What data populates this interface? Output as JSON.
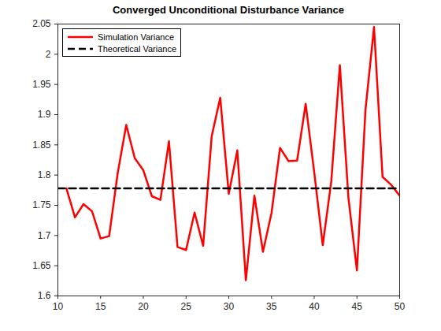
{
  "chart_data": {
    "type": "line",
    "title": "Converged  Unconditional  Disturbance  Variance",
    "xlim": [
      10,
      50
    ],
    "xticks": [
      10,
      15,
      20,
      25,
      30,
      35,
      40,
      45,
      50
    ],
    "ylim": [
      1.6,
      2.05
    ],
    "yticks": [
      1.6,
      1.65,
      1.7,
      1.75,
      1.8,
      1.85,
      1.9,
      1.95,
      2,
      2.05
    ],
    "grid": false,
    "legend": "top-left",
    "series": [
      {
        "name": "Simulation Variance",
        "color": "#ff0000",
        "line_style": "solid",
        "x": [
          11,
          12,
          13,
          14,
          15,
          16,
          17,
          18,
          19,
          20,
          21,
          22,
          23,
          24,
          25,
          26,
          27,
          28,
          29,
          30,
          31,
          32,
          33,
          34,
          35,
          36,
          37,
          38,
          39,
          40,
          41,
          42,
          43,
          44,
          45,
          46,
          47,
          48,
          49,
          50
        ],
        "values": [
          1.778,
          1.73,
          1.752,
          1.74,
          1.695,
          1.699,
          1.803,
          1.883,
          1.828,
          1.808,
          1.765,
          1.759,
          1.856,
          1.681,
          1.676,
          1.738,
          1.683,
          1.864,
          1.928,
          1.769,
          1.841,
          1.626,
          1.766,
          1.673,
          1.737,
          1.845,
          1.823,
          1.824,
          1.918,
          1.805,
          1.684,
          1.79,
          1.982,
          1.763,
          1.642,
          1.908,
          2.045,
          1.797,
          1.784,
          1.766
        ]
      },
      {
        "name": "Theoretical Variance",
        "color": "#000000",
        "line_style": "dashed",
        "x": [
          10,
          50
        ],
        "values": [
          1.778,
          1.778
        ]
      }
    ]
  }
}
